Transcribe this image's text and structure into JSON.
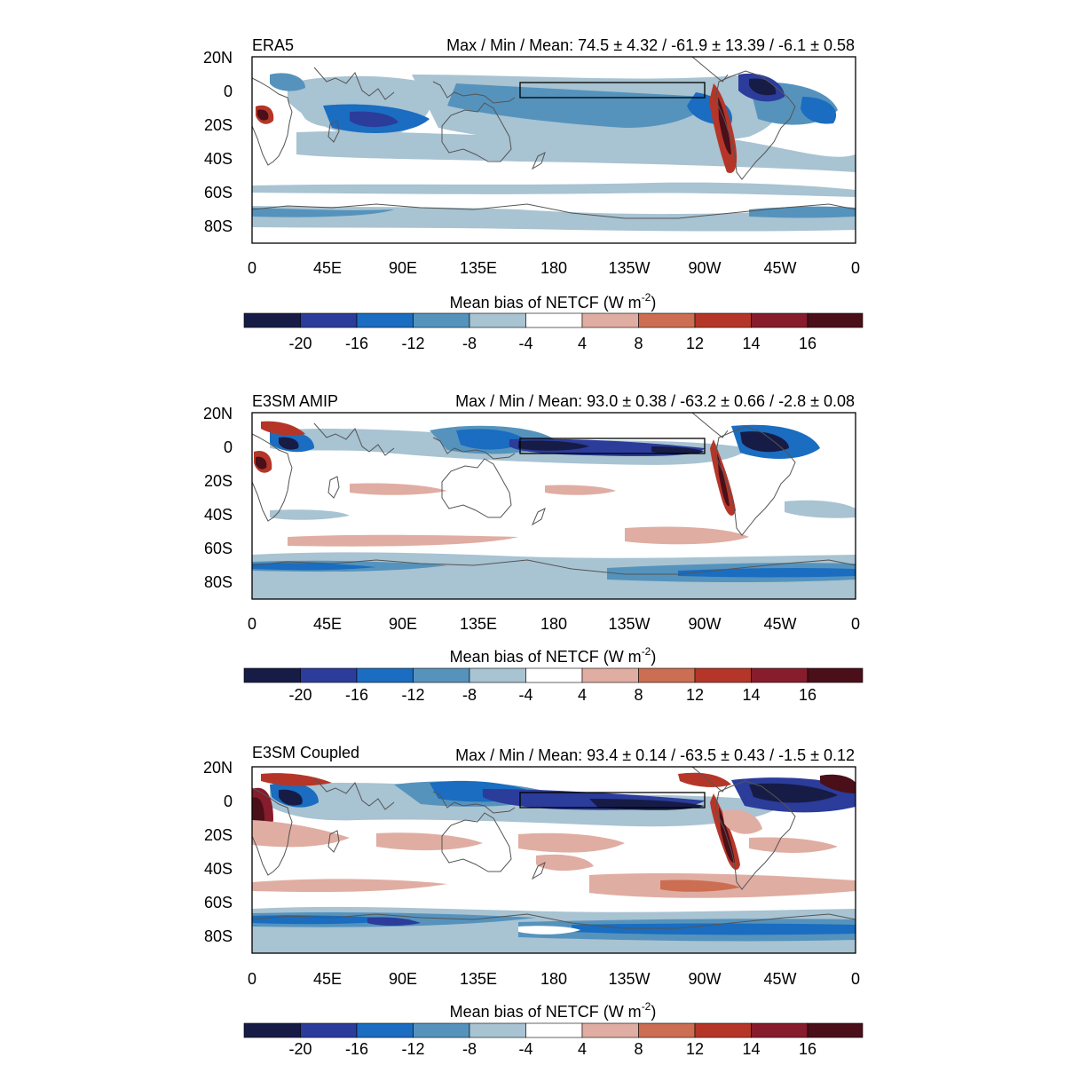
{
  "figure": {
    "colorbar_label_prefix": "Mean bias of NETCF (W m",
    "colorbar_label_exponent": "-2",
    "colorbar_label_suffix": ")",
    "stats_label": "Max / Min / Mean:",
    "lon_ticks": [
      "0",
      "45E",
      "90E",
      "135E",
      "180",
      "135W",
      "90W",
      "45W",
      "0"
    ],
    "lat_ticks": [
      "20N",
      "0",
      "20S",
      "40S",
      "60S",
      "80S"
    ],
    "colorbar_ticks": [
      "-20",
      "-16",
      "-12",
      "-8",
      "-4",
      "4",
      "8",
      "12",
      "14",
      "16"
    ],
    "colorbar_colors": [
      "#161c46",
      "#2b3c9b",
      "#1a6dc0",
      "#5593bd",
      "#a8c3d2",
      "#ffffff",
      "#e0ada2",
      "#cc6e52",
      "#b53628",
      "#861c2c",
      "#4a0f19"
    ],
    "panels": [
      {
        "id": "era5",
        "title": "ERA5",
        "stats": "74.5 ± 4.32 / -61.9 ± 13.39 / -6.1 ± 0.58"
      },
      {
        "id": "amip",
        "title": "E3SM AMIP",
        "stats": "93.0 ± 0.38 / -63.2 ± 0.66 / -2.8 ± 0.08"
      },
      {
        "id": "coupled",
        "title": "E3SM Coupled",
        "stats": "93.4 ± 0.14 / -63.5 ± 0.43 / -1.5 ± 0.12"
      }
    ]
  }
}
